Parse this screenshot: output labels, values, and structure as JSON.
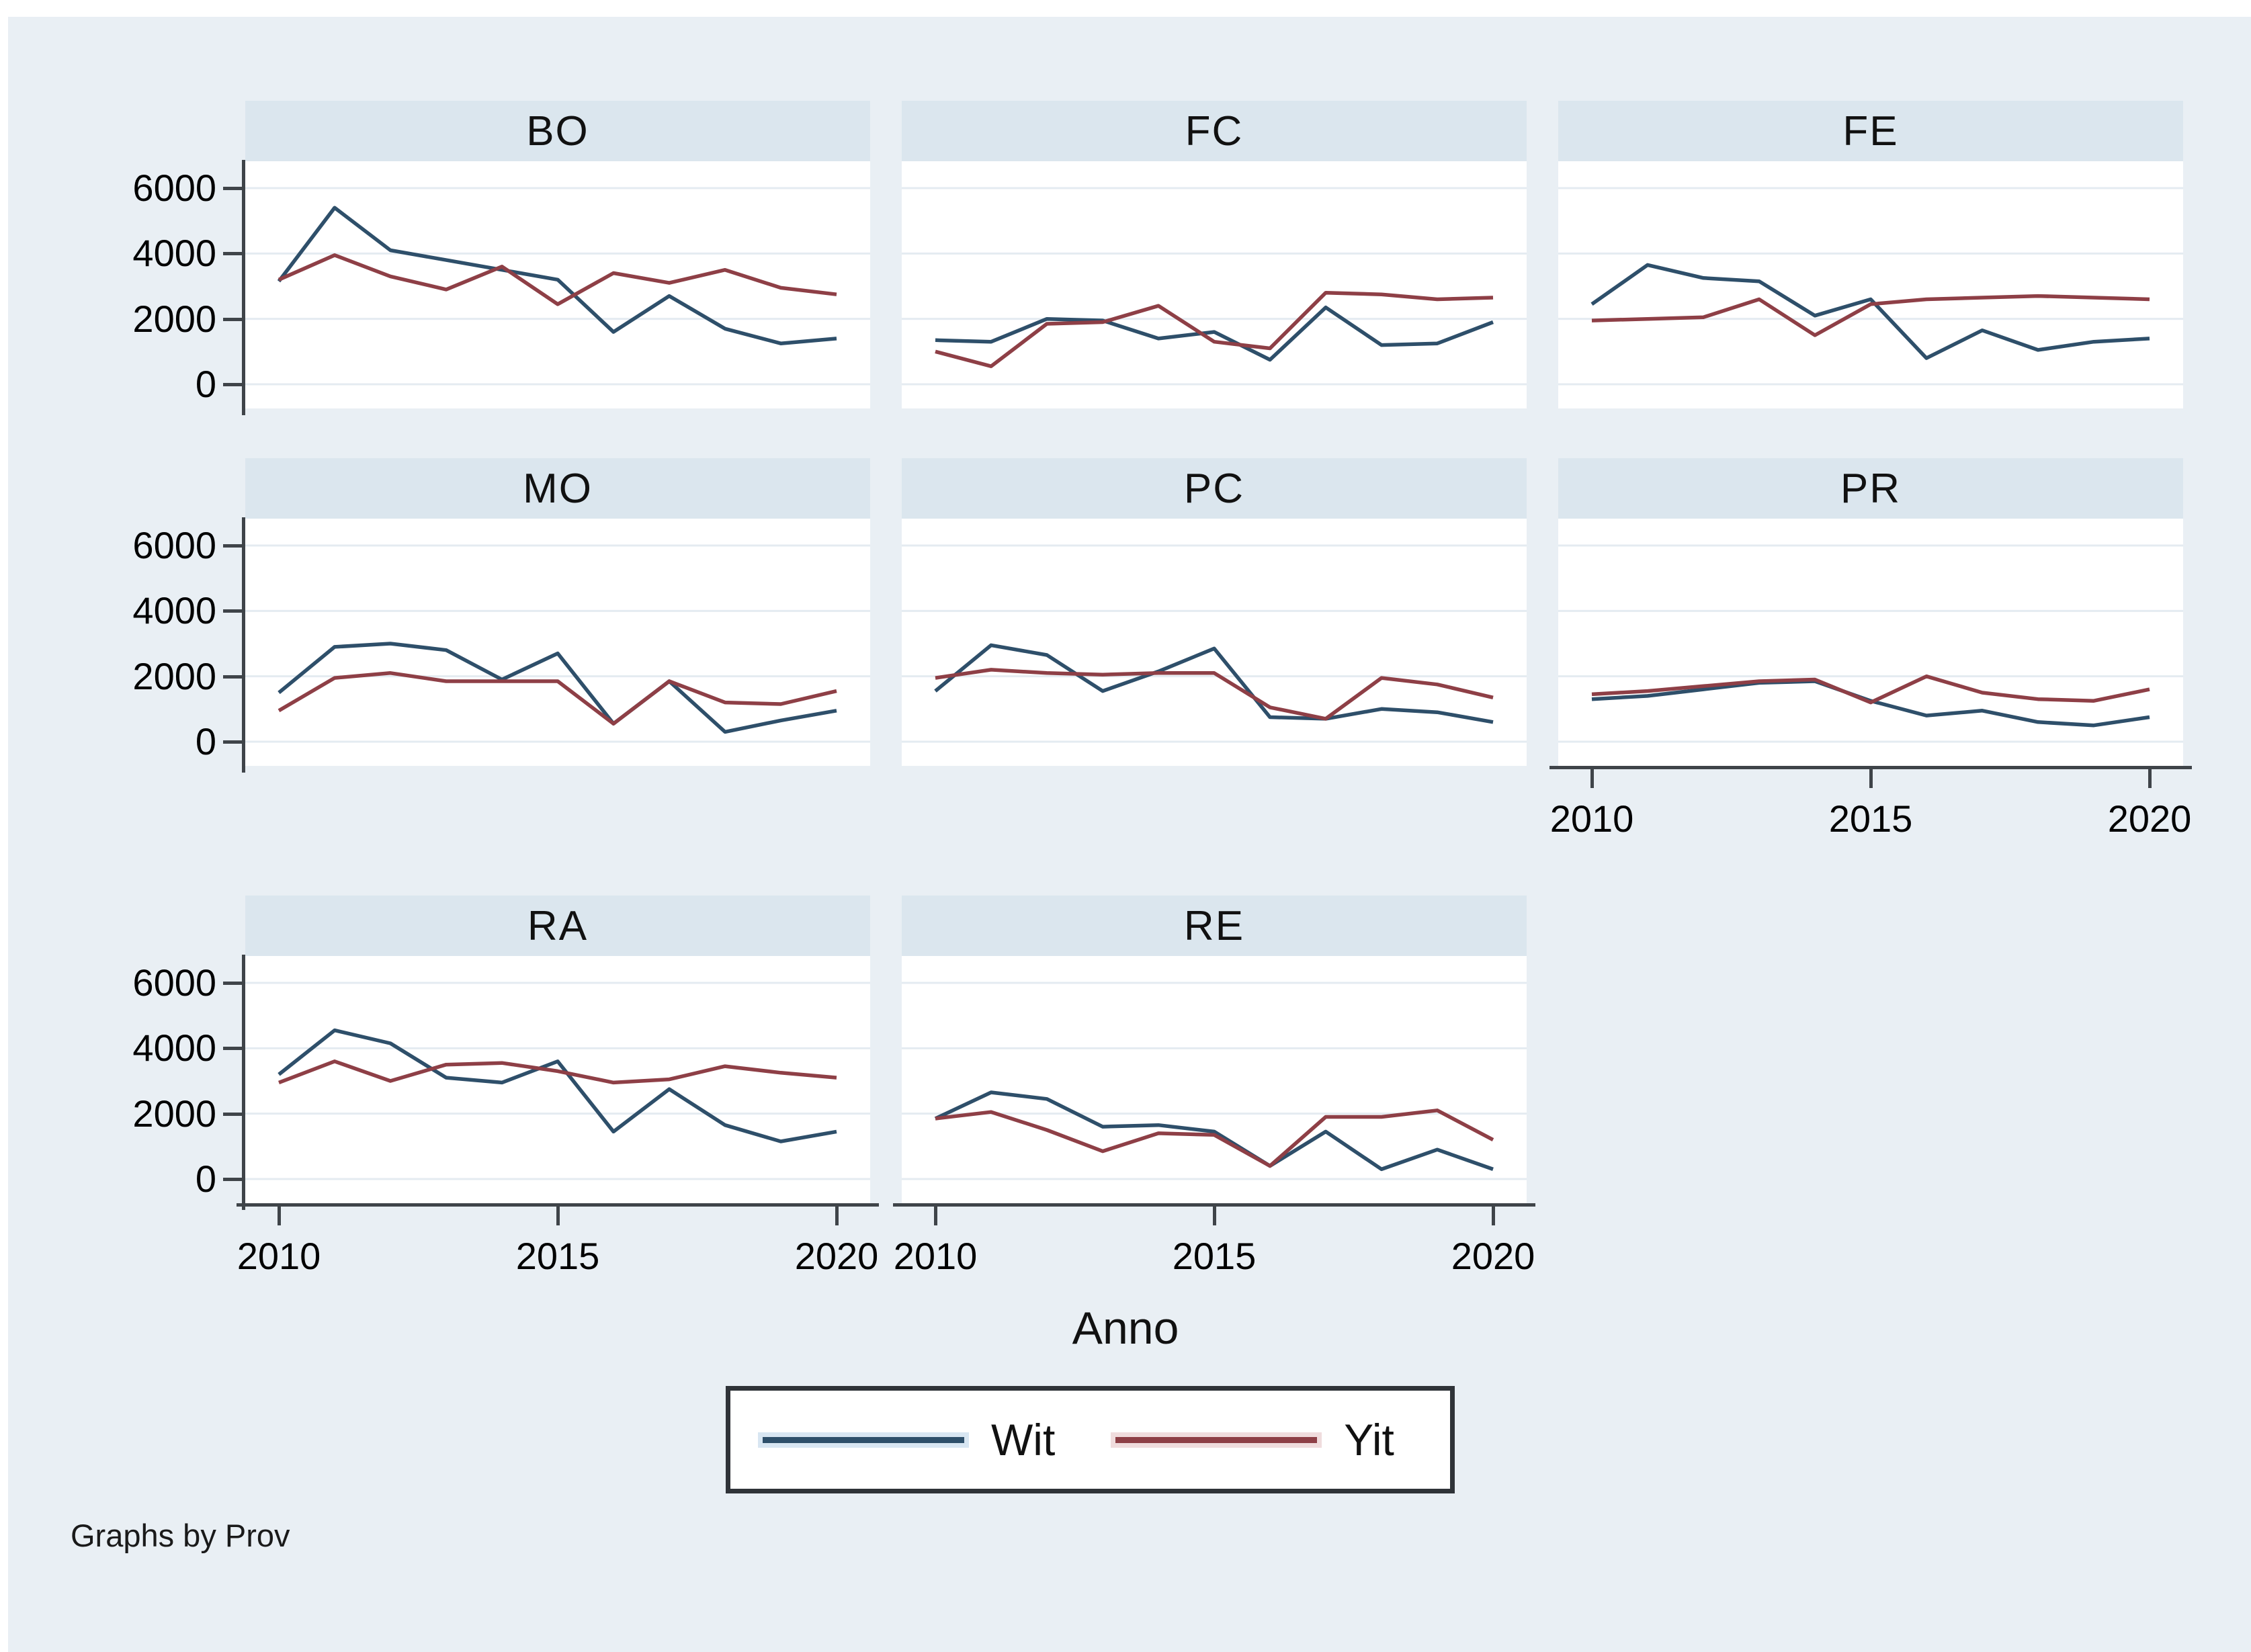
{
  "graph": {
    "xlabel": "Anno",
    "note": "Graphs by Prov",
    "legend": [
      {
        "label": "Wit",
        "color": "#2e4f6a"
      },
      {
        "label": "Yit",
        "color": "#8e3f46"
      }
    ],
    "colors": {
      "background": "#e9eff4",
      "header": "#dbe6ee",
      "grid": "#e4ebf1",
      "axis": "#3f4449",
      "wit": "#2e4f6a",
      "yit": "#8e3f46"
    }
  },
  "chart_data": {
    "type": "line",
    "facet_by": "Prov",
    "x": [
      2010,
      2011,
      2012,
      2013,
      2014,
      2015,
      2016,
      2017,
      2018,
      2019,
      2020
    ],
    "x_ticks": [
      2010,
      2015,
      2020
    ],
    "y_ticks": [
      0,
      2000,
      4000,
      6000
    ],
    "ylim": [
      0,
      6800
    ],
    "grid": true,
    "legend_position": "bottom",
    "xlabel": "Anno",
    "series_names": [
      "Wit",
      "Yit"
    ],
    "panels": [
      {
        "title": "BO",
        "x_axis": false,
        "series": [
          {
            "name": "Wit",
            "values": [
              3150,
              5400,
              4100,
              3800,
              3500,
              3200,
              1600,
              2700,
              1700,
              1250,
              1400
            ]
          },
          {
            "name": "Yit",
            "values": [
              3200,
              3950,
              3300,
              2900,
              3600,
              2450,
              3400,
              3100,
              3500,
              2950,
              2750
            ]
          }
        ]
      },
      {
        "title": "FC",
        "x_axis": false,
        "series": [
          {
            "name": "Wit",
            "values": [
              1350,
              1300,
              2000,
              1950,
              1400,
              1600,
              750,
              2350,
              1200,
              1250,
              1900
            ]
          },
          {
            "name": "Yit",
            "values": [
              1000,
              550,
              1850,
              1900,
              2400,
              1300,
              1100,
              2800,
              2750,
              2600,
              2650
            ]
          }
        ]
      },
      {
        "title": "FE",
        "x_axis": false,
        "series": [
          {
            "name": "Wit",
            "values": [
              2450,
              3650,
              3250,
              3150,
              2100,
              2600,
              800,
              1650,
              1050,
              1300,
              1400
            ]
          },
          {
            "name": "Yit",
            "values": [
              1950,
              2000,
              2050,
              2600,
              1500,
              2450,
              2600,
              2650,
              2700,
              2650,
              2600
            ]
          }
        ]
      },
      {
        "title": "MO",
        "x_axis": false,
        "series": [
          {
            "name": "Wit",
            "values": [
              1500,
              2900,
              3000,
              2800,
              1900,
              2700,
              550,
              1850,
              300,
              650,
              950
            ]
          },
          {
            "name": "Yit",
            "values": [
              950,
              1950,
              2100,
              1850,
              1850,
              1850,
              550,
              1850,
              1200,
              1150,
              1550
            ]
          }
        ]
      },
      {
        "title": "PC",
        "x_axis": false,
        "series": [
          {
            "name": "Wit",
            "values": [
              1550,
              2950,
              2650,
              1550,
              2150,
              2850,
              750,
              700,
              1000,
              900,
              600
            ]
          },
          {
            "name": "Yit",
            "values": [
              1950,
              2200,
              2100,
              2050,
              2100,
              2100,
              1050,
              700,
              1950,
              1750,
              1350
            ]
          }
        ]
      },
      {
        "title": "PR",
        "x_axis": true,
        "series": [
          {
            "name": "Wit",
            "values": [
              1300,
              1400,
              1600,
              1800,
              1850,
              1250,
              800,
              950,
              600,
              500,
              750
            ]
          },
          {
            "name": "Yit",
            "values": [
              1450,
              1550,
              1700,
              1850,
              1900,
              1200,
              2000,
              1500,
              1300,
              1250,
              1600
            ]
          }
        ]
      },
      {
        "title": "RA",
        "x_axis": true,
        "series": [
          {
            "name": "Wit",
            "values": [
              3200,
              4550,
              4150,
              3100,
              2950,
              3600,
              1450,
              2750,
              1650,
              1150,
              1450
            ]
          },
          {
            "name": "Yit",
            "values": [
              2950,
              3600,
              3000,
              3500,
              3550,
              3300,
              2950,
              3050,
              3450,
              3250,
              3100
            ]
          }
        ]
      },
      {
        "title": "RE",
        "x_axis": true,
        "series": [
          {
            "name": "Wit",
            "values": [
              1850,
              2650,
              2450,
              1600,
              1650,
              1450,
              400,
              1450,
              300,
              900,
              300
            ]
          },
          {
            "name": "Yit",
            "values": [
              1850,
              2050,
              1500,
              850,
              1400,
              1350,
              400,
              1900,
              1900,
              2100,
              1200
            ]
          }
        ]
      }
    ]
  }
}
